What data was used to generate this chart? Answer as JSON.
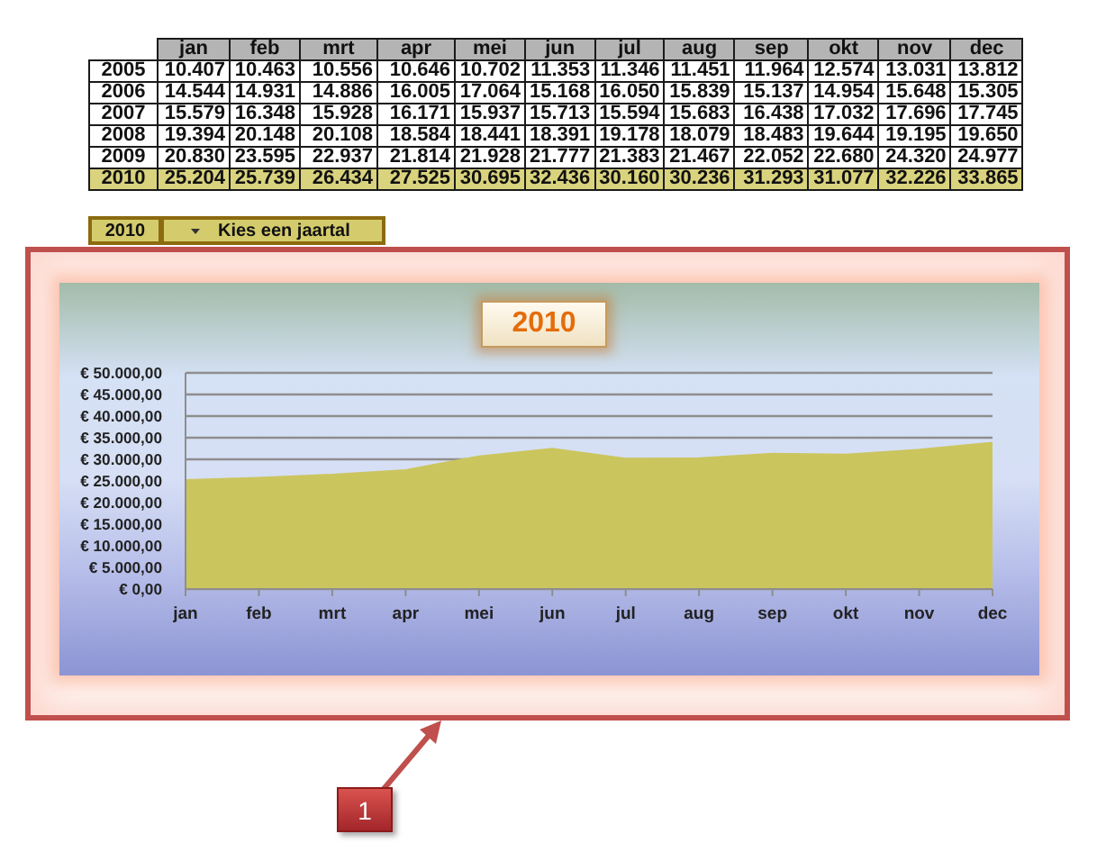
{
  "chart_data": [
    {
      "type": "heatmap",
      "categories": [
        "jan",
        "feb",
        "mrt",
        "apr",
        "mei",
        "jun",
        "jul",
        "aug",
        "sep",
        "okt",
        "nov",
        "dec"
      ],
      "y_categories": [
        "2005",
        "2006",
        "2007",
        "2008",
        "2009",
        "2010"
      ],
      "cells": [
        [
          10407,
          10463,
          10556,
          10646,
          10702,
          11353,
          11346,
          11451,
          11964,
          12574,
          13031,
          13812
        ],
        [
          14544,
          14931,
          14886,
          16005,
          17064,
          15168,
          16050,
          15839,
          15137,
          14954,
          15648,
          15305
        ],
        [
          15579,
          16348,
          15928,
          16171,
          15937,
          15713,
          15594,
          15683,
          16438,
          17032,
          17696,
          17745
        ],
        [
          19394,
          20148,
          20108,
          18584,
          18441,
          18391,
          19178,
          18079,
          18483,
          19644,
          19195,
          19650
        ],
        [
          20830,
          23595,
          22937,
          21814,
          21928,
          21777,
          21383,
          21467,
          22052,
          22680,
          24320,
          24977
        ],
        [
          25204,
          25739,
          26434,
          27525,
          30695,
          32436,
          30160,
          30236,
          31293,
          31077,
          32226,
          33865
        ]
      ],
      "cell_labels": [
        [
          "10.407",
          "10.463",
          "10.556",
          "10.646",
          "10.702",
          "11.353",
          "11.346",
          "11.451",
          "11.964",
          "12.574",
          "13.031",
          "13.812"
        ],
        [
          "14.544",
          "14.931",
          "14.886",
          "16.005",
          "17.064",
          "15.168",
          "16.050",
          "15.839",
          "15.137",
          "14.954",
          "15.648",
          "15.305"
        ],
        [
          "15.579",
          "16.348",
          "15.928",
          "16.171",
          "15.937",
          "15.713",
          "15.594",
          "15.683",
          "16.438",
          "17.032",
          "17.696",
          "17.745"
        ],
        [
          "19.394",
          "20.148",
          "20.108",
          "18.584",
          "18.441",
          "18.391",
          "19.178",
          "18.079",
          "18.483",
          "19.644",
          "19.195",
          "19.650"
        ],
        [
          "20.830",
          "23.595",
          "22.937",
          "21.814",
          "21.928",
          "21.777",
          "21.383",
          "21.467",
          "22.052",
          "22.680",
          "24.320",
          "24.977"
        ],
        [
          "25.204",
          "25.739",
          "26.434",
          "27.525",
          "30.695",
          "32.436",
          "30.160",
          "30.236",
          "31.293",
          "31.077",
          "32.226",
          "33.865"
        ]
      ],
      "bands": [
        {
          "axis": "y",
          "from": "2010",
          "to": "2010",
          "color": "#d8d27a"
        }
      ]
    },
    {
      "type": "area",
      "title": "2010",
      "categories": [
        "jan",
        "feb",
        "mrt",
        "apr",
        "mei",
        "jun",
        "jul",
        "aug",
        "sep",
        "okt",
        "nov",
        "dec"
      ],
      "values": [
        25204,
        25739,
        26434,
        27525,
        30695,
        32436,
        30160,
        30236,
        31293,
        31077,
        32226,
        33865
      ],
      "color": "#cbc55e",
      "ylim": [
        0,
        50000
      ],
      "yticks": [
        {
          "value": 0,
          "label": "€ 0,00"
        },
        {
          "value": 5000,
          "label": "€ 5.000,00"
        },
        {
          "value": 10000,
          "label": "€ 10.000,00"
        },
        {
          "value": 15000,
          "label": "€ 15.000,00"
        },
        {
          "value": 20000,
          "label": "€ 20.000,00"
        },
        {
          "value": 25000,
          "label": "€ 25.000,00"
        },
        {
          "value": 30000,
          "label": "€ 30.000,00"
        },
        {
          "value": 35000,
          "label": "€ 35.000,00"
        },
        {
          "value": 40000,
          "label": "€ 40.000,00"
        },
        {
          "value": 45000,
          "label": "€ 45.000,00"
        },
        {
          "value": 50000,
          "label": "€ 50.000,00"
        }
      ],
      "grid": "y",
      "annotations": [
        "2010",
        "Kies een jaartal",
        "1"
      ]
    }
  ]
}
